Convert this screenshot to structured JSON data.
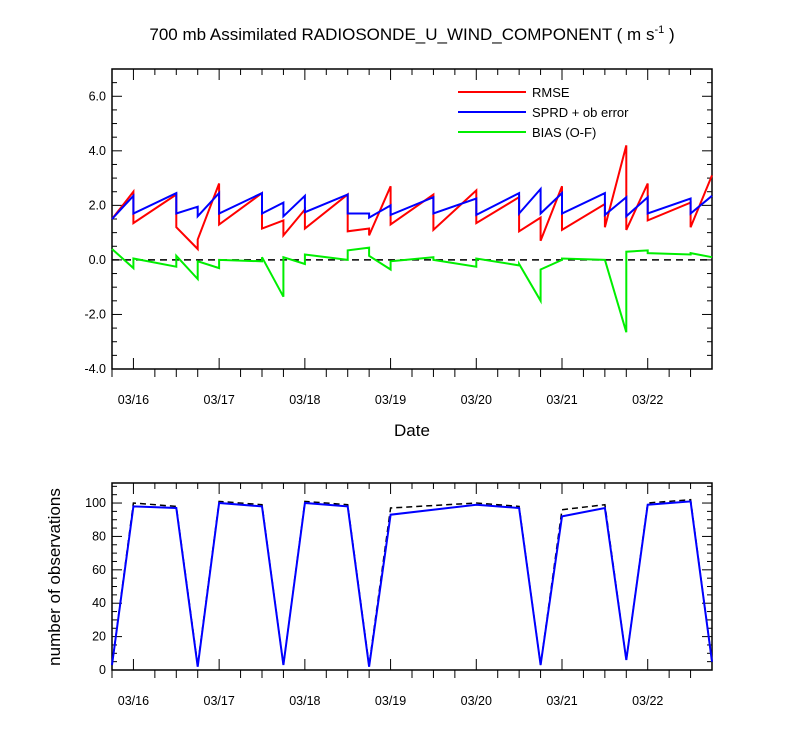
{
  "title_main": "700 mb Assimilated RADIOSONDE_U_WIND_COMPONENT ( m s",
  "title_sup": "-1",
  "title_end": " )",
  "colors": {
    "rmse": "#ff0000",
    "sprd": "#0000ff",
    "bias": "#00ee00",
    "zero": "#000000",
    "background": "#ffffff"
  },
  "chart_data": [
    {
      "type": "line",
      "xlabel": "Date",
      "ylabel": "",
      "ylim": [
        -4,
        7
      ],
      "yticks": [
        -4,
        -2,
        0,
        2,
        4,
        6
      ],
      "ytick_labels": [
        "-4.0",
        "-2.0",
        "0.0",
        "2.0",
        "4.0",
        "6.0"
      ],
      "xlim": [
        0,
        7.0
      ],
      "xticks": [
        0.25,
        1.25,
        2.25,
        3.25,
        4.25,
        5.25,
        6.25
      ],
      "xtick_labels": [
        "03/16",
        "03/17",
        "03/18",
        "03/19",
        "03/20",
        "03/21",
        "03/22"
      ],
      "x_minor_ticks": [
        0.0,
        0.5,
        0.75,
        1.0,
        1.5,
        1.75,
        2.0,
        2.5,
        2.75,
        3.0,
        3.5,
        3.75,
        4.0,
        4.5,
        4.75,
        5.0,
        5.5,
        5.75,
        6.0,
        6.5,
        6.75
      ],
      "grid": false,
      "legend_position": "top-right",
      "reference_line": {
        "y": 0,
        "style": "dashed"
      },
      "series": [
        {
          "name": "RMSE",
          "color_key": "rmse",
          "x": [
            0.0,
            0.25,
            0.25,
            0.75,
            0.75,
            1.0,
            1.0,
            1.25,
            1.25,
            1.75,
            1.75,
            2.0,
            2.0,
            2.25,
            2.25,
            2.75,
            2.75,
            3.0,
            3.0,
            3.25,
            3.25,
            3.75,
            3.75,
            4.25,
            4.25,
            4.75,
            4.75,
            5.0,
            5.0,
            5.25,
            5.25,
            5.75,
            5.75,
            6.0,
            6.0,
            6.25,
            6.25,
            6.75,
            6.75,
            7.0
          ],
          "y": [
            1.5,
            2.5,
            1.35,
            2.4,
            1.2,
            0.4,
            0.75,
            2.8,
            1.3,
            2.45,
            1.15,
            1.45,
            0.9,
            1.85,
            1.15,
            2.4,
            1.05,
            1.15,
            0.9,
            2.7,
            1.3,
            2.4,
            1.1,
            2.55,
            1.35,
            2.3,
            1.05,
            1.55,
            0.7,
            2.7,
            1.1,
            2.05,
            1.2,
            4.2,
            1.1,
            2.8,
            1.45,
            2.1,
            1.2,
            3.1
          ]
        },
        {
          "name": "SPRD + ob error",
          "color_key": "sprd",
          "x": [
            0.0,
            0.25,
            0.25,
            0.75,
            0.75,
            1.0,
            1.0,
            1.25,
            1.25,
            1.75,
            1.75,
            2.0,
            2.0,
            2.25,
            2.25,
            2.75,
            2.75,
            3.0,
            3.0,
            3.25,
            3.25,
            3.75,
            3.75,
            4.25,
            4.25,
            4.75,
            4.75,
            5.0,
            5.0,
            5.25,
            5.25,
            5.75,
            5.75,
            6.0,
            6.0,
            6.25,
            6.25,
            6.75,
            6.75,
            7.0
          ],
          "y": [
            1.5,
            2.35,
            1.7,
            2.45,
            1.7,
            1.95,
            1.6,
            2.45,
            1.7,
            2.45,
            1.7,
            2.1,
            1.6,
            2.35,
            1.75,
            2.4,
            1.7,
            1.7,
            1.55,
            2.0,
            1.65,
            2.3,
            1.7,
            2.25,
            1.65,
            2.45,
            1.7,
            2.6,
            1.7,
            2.45,
            1.7,
            2.45,
            1.65,
            2.3,
            1.6,
            2.3,
            1.7,
            2.25,
            1.7,
            2.35
          ]
        },
        {
          "name": "BIAS (O-F)",
          "color_key": "bias",
          "x": [
            0.0,
            0.25,
            0.25,
            0.75,
            0.75,
            1.0,
            1.0,
            1.25,
            1.25,
            1.75,
            1.75,
            2.0,
            2.0,
            2.25,
            2.25,
            2.75,
            2.75,
            3.0,
            3.0,
            3.25,
            3.25,
            3.75,
            3.75,
            4.25,
            4.25,
            4.75,
            4.75,
            5.0,
            5.0,
            5.25,
            5.25,
            5.75,
            5.75,
            6.0,
            6.0,
            6.25,
            6.25,
            6.75,
            6.75,
            7.0
          ],
          "y": [
            0.4,
            -0.3,
            0.05,
            -0.25,
            0.15,
            -0.7,
            -0.05,
            -0.3,
            0.0,
            -0.05,
            0.1,
            -1.35,
            0.1,
            -0.15,
            0.2,
            0.0,
            0.35,
            0.45,
            0.15,
            -0.35,
            -0.05,
            0.1,
            0.0,
            -0.25,
            0.05,
            -0.2,
            -0.15,
            -1.5,
            -0.35,
            0.0,
            0.05,
            0.0,
            0.0,
            -2.65,
            0.3,
            0.35,
            0.25,
            0.2,
            0.25,
            0.1
          ]
        }
      ]
    },
    {
      "type": "line",
      "xlabel": "",
      "ylabel": "number of observations",
      "ylim": [
        0,
        112
      ],
      "yticks": [
        0,
        20,
        40,
        60,
        80,
        100
      ],
      "ytick_labels": [
        "0",
        "20",
        "40",
        "60",
        "80",
        "100"
      ],
      "xlim": [
        0,
        7.0
      ],
      "xticks": [
        0.25,
        1.25,
        2.25,
        3.25,
        4.25,
        5.25,
        6.25
      ],
      "xtick_labels": [
        "03/16",
        "03/17",
        "03/18",
        "03/19",
        "03/20",
        "03/21",
        "03/22"
      ],
      "x_minor_ticks": [
        0.0,
        0.5,
        0.75,
        1.0,
        1.5,
        1.75,
        2.0,
        2.5,
        2.75,
        3.0,
        3.5,
        3.75,
        4.0,
        4.5,
        4.75,
        5.0,
        5.5,
        5.75,
        6.0,
        6.5,
        6.75
      ],
      "grid": false,
      "series": [
        {
          "color_key": "zero",
          "style": "dashed",
          "x": [
            0.0,
            0.25,
            0.75,
            1.0,
            1.25,
            1.75,
            2.0,
            2.25,
            2.75,
            3.0,
            3.25,
            4.25,
            4.75,
            5.0,
            5.25,
            5.75,
            6.0,
            6.25,
            6.75,
            7.0
          ],
          "y": [
            3,
            100,
            98,
            3,
            101,
            99,
            3,
            101,
            99,
            3,
            97,
            100,
            98,
            3,
            96,
            99,
            6,
            100,
            102,
            5
          ]
        },
        {
          "color_key": "sprd",
          "style": "solid",
          "x": [
            0.0,
            0.25,
            0.75,
            1.0,
            1.25,
            1.75,
            2.0,
            2.25,
            2.75,
            3.0,
            3.25,
            4.25,
            4.75,
            5.0,
            5.25,
            5.75,
            6.0,
            6.25,
            6.75,
            7.0
          ],
          "y": [
            3,
            98,
            97,
            2,
            100,
            98,
            3,
            100,
            98,
            2,
            93,
            99,
            97,
            3,
            92,
            97,
            6,
            99,
            101,
            5
          ]
        }
      ]
    }
  ]
}
